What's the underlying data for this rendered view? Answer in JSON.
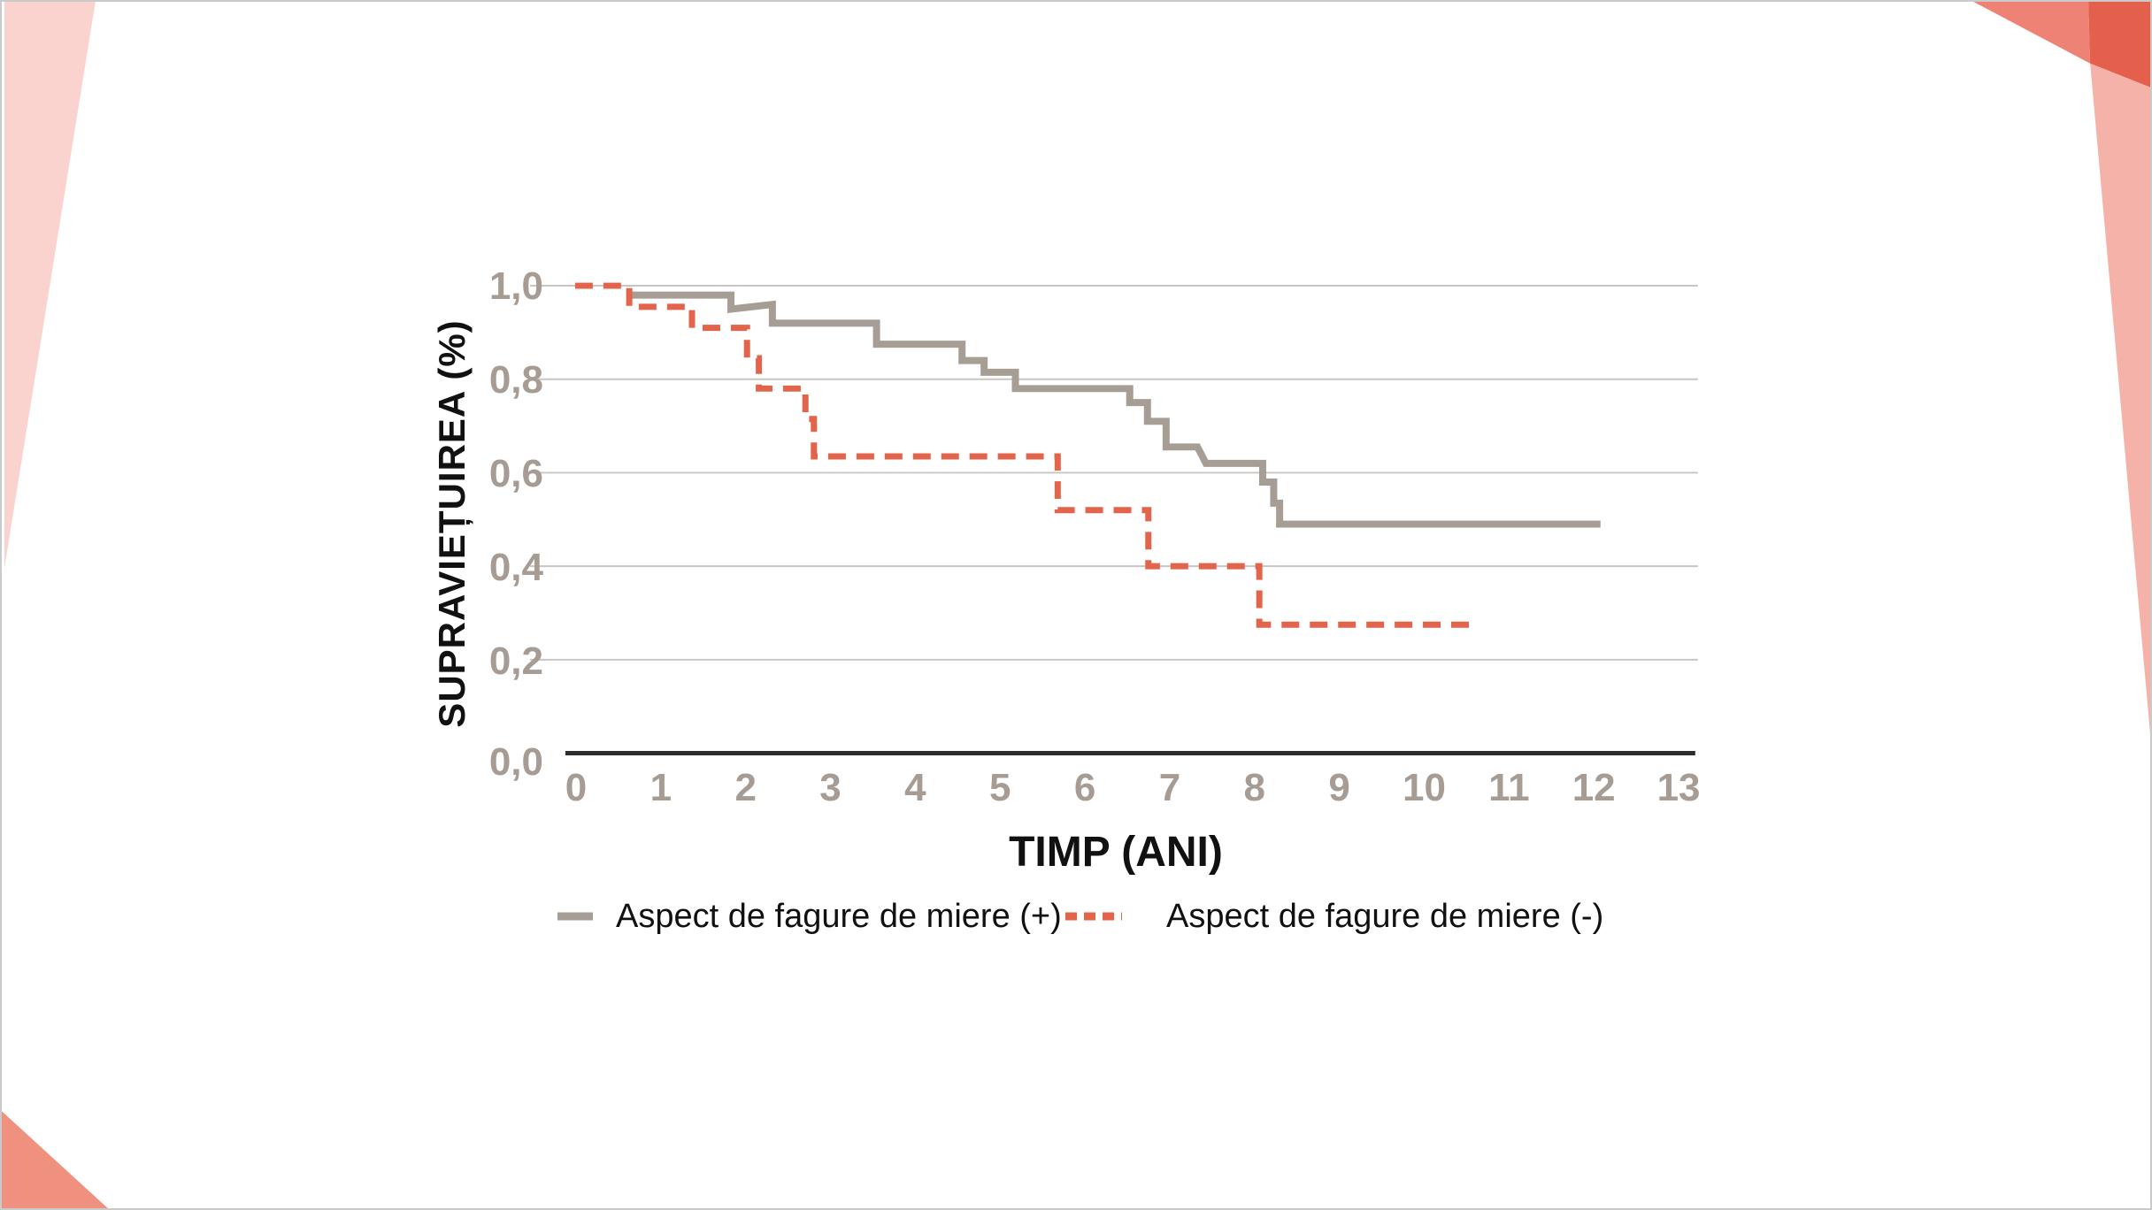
{
  "page": {
    "background_color": "#ffffff",
    "frame_color": "#cacaca"
  },
  "decorations": {
    "top_left_wedge_color": "#fbd3ce",
    "bottom_left_triangle_color": "#f0907f",
    "top_right_triangle_color": "#ee8274",
    "top_right_corner_color": "#e4604c",
    "right_band_color": "#f5b2a9"
  },
  "chart_data": {
    "type": "line",
    "variant": "kaplan-meier-step-curves",
    "title": "",
    "xlabel": "TIMP (ANI)",
    "ylabel": "SUPRAVIEȚUIREA (%)",
    "xlim": [
      0,
      13
    ],
    "ylim": [
      0.0,
      1.0
    ],
    "grid": "horizontal-only",
    "legend_position": "bottom-left",
    "x_ticks": [
      "0",
      "1",
      "2",
      "3",
      "4",
      "5",
      "6",
      "7",
      "8",
      "9",
      "10",
      "11",
      "12",
      "13"
    ],
    "y_ticks": [
      {
        "label": "1,0",
        "value": 1.0
      },
      {
        "label": "0,8",
        "value": 0.8
      },
      {
        "label": "0,6",
        "value": 0.6
      },
      {
        "label": "0,4",
        "value": 0.4
      },
      {
        "label": "0,2",
        "value": 0.2
      },
      {
        "label": "0,0",
        "value": 0.0
      }
    ],
    "colors": {
      "grid": "#c9c5c2",
      "axis": "#2e2d2b",
      "tick_label": "#a69c94",
      "axis_title": "#111111",
      "legend_text": "#111111"
    },
    "series": [
      {
        "name": "Aspect de fagure de miere (+)",
        "color": "#a69d95",
        "style": "solid",
        "points": [
          [
            0.63,
            0.98
          ],
          [
            1.84,
            0.98
          ],
          [
            1.84,
            0.95
          ],
          [
            2.33,
            0.96
          ],
          [
            2.33,
            0.92
          ],
          [
            3.56,
            0.92
          ],
          [
            3.56,
            0.875
          ],
          [
            4.57,
            0.875
          ],
          [
            4.57,
            0.84
          ],
          [
            4.83,
            0.84
          ],
          [
            4.83,
            0.815
          ],
          [
            5.2,
            0.815
          ],
          [
            5.2,
            0.78
          ],
          [
            6.55,
            0.78
          ],
          [
            6.55,
            0.75
          ],
          [
            6.76,
            0.75
          ],
          [
            6.76,
            0.71
          ],
          [
            6.98,
            0.71
          ],
          [
            6.98,
            0.655
          ],
          [
            7.35,
            0.655
          ],
          [
            7.45,
            0.62
          ],
          [
            8.12,
            0.62
          ],
          [
            8.12,
            0.58
          ],
          [
            8.25,
            0.58
          ],
          [
            8.25,
            0.535
          ],
          [
            8.32,
            0.535
          ],
          [
            8.32,
            0.49
          ],
          [
            12.11,
            0.49
          ]
        ]
      },
      {
        "name": "Aspect de fagure de miere (-)",
        "color": "#e1644b",
        "style": "dashed",
        "points": [
          [
            0.0,
            1.0
          ],
          [
            0.64,
            1.0
          ],
          [
            0.64,
            0.955
          ],
          [
            1.38,
            0.955
          ],
          [
            1.38,
            0.91
          ],
          [
            2.03,
            0.91
          ],
          [
            2.03,
            0.845
          ],
          [
            2.17,
            0.845
          ],
          [
            2.17,
            0.78
          ],
          [
            2.72,
            0.78
          ],
          [
            2.72,
            0.715
          ],
          [
            2.82,
            0.715
          ],
          [
            2.82,
            0.635
          ],
          [
            5.7,
            0.635
          ],
          [
            5.7,
            0.52
          ],
          [
            6.77,
            0.52
          ],
          [
            6.77,
            0.4
          ],
          [
            8.08,
            0.4
          ],
          [
            8.08,
            0.275
          ],
          [
            10.67,
            0.275
          ]
        ]
      }
    ]
  }
}
